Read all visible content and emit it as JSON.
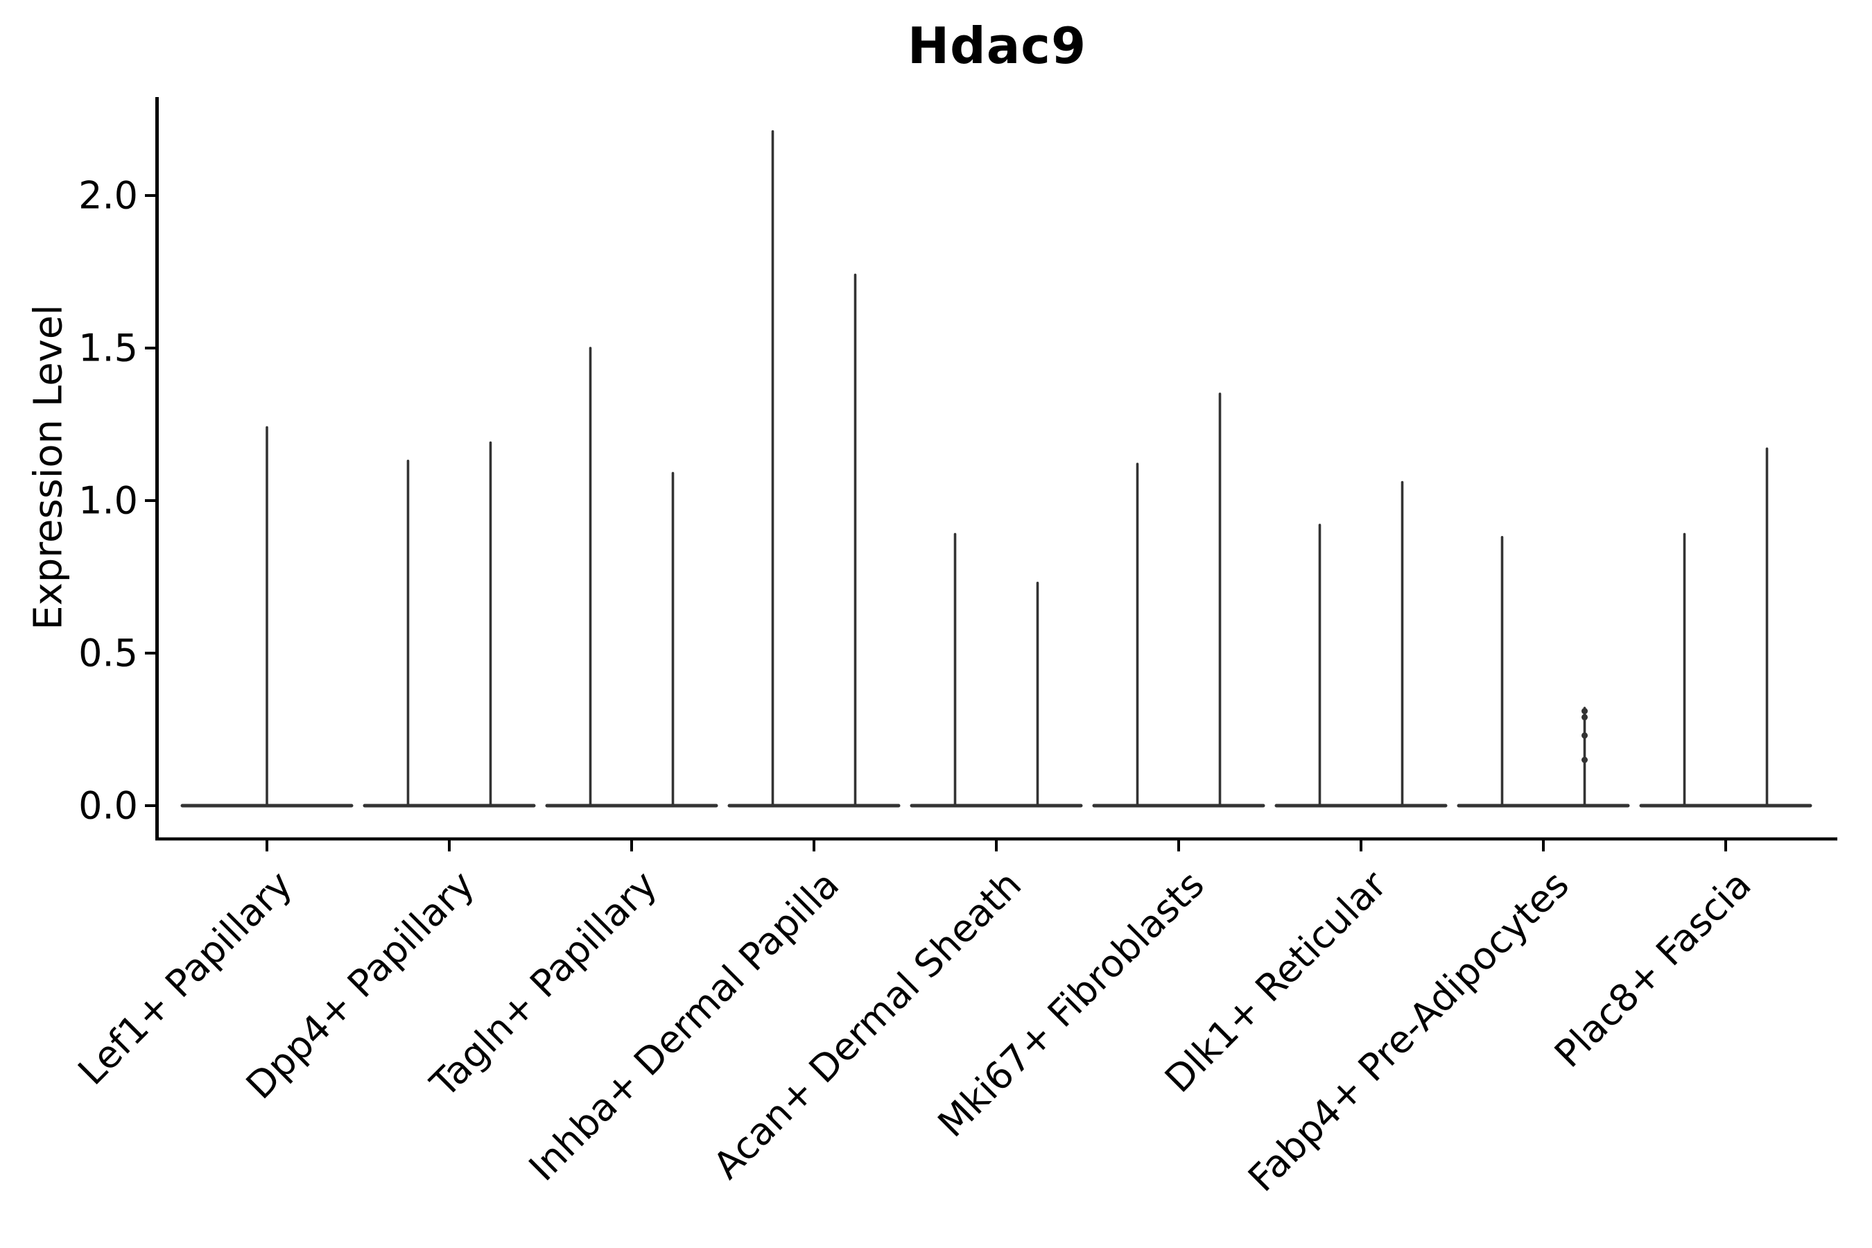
{
  "figure": {
    "background": "#ffffff",
    "violin_line_color": "#333333",
    "axis_color": "#000000"
  },
  "chart_data": {
    "type": "violin",
    "title": "Hdac9",
    "xlabel": "",
    "ylabel": "Expression Level",
    "ylim": [
      -0.11,
      2.32
    ],
    "yticks": [
      0.0,
      0.5,
      1.0,
      1.5,
      2.0
    ],
    "ytick_labels": [
      "0.0",
      "0.5",
      "1.0",
      "1.5",
      "2.0"
    ],
    "grid": false,
    "legend": "none",
    "categories": [
      "Lef1+ Papillary",
      "Dpp4+ Papillary",
      "Tagln+ Papillary",
      "Inhba+ Dermal Papilla",
      "Acan+ Dermal Sheath",
      "Mki67+ Fibroblasts",
      "Dlk1+ Reticular",
      "Fabp4+ Pre-Adipocytes",
      "Plac8+ Fascia"
    ],
    "baseline_value": 0.0,
    "violins": [
      {
        "category": "Lef1+ Papillary",
        "spikes": [
          {
            "max": 1.24
          }
        ]
      },
      {
        "category": "Dpp4+ Papillary",
        "spikes": [
          {
            "max": 1.13
          },
          {
            "max": 1.19
          }
        ]
      },
      {
        "category": "Tagln+ Papillary",
        "spikes": [
          {
            "max": 1.5
          },
          {
            "max": 1.09
          }
        ]
      },
      {
        "category": "Inhba+ Dermal Papilla",
        "spikes": [
          {
            "max": 2.21
          },
          {
            "max": 1.74
          }
        ]
      },
      {
        "category": "Acan+ Dermal Sheath",
        "spikes": [
          {
            "max": 0.89
          },
          {
            "max": 0.73
          }
        ]
      },
      {
        "category": "Mki67+ Fibroblasts",
        "spikes": [
          {
            "max": 1.12
          },
          {
            "max": 1.35
          }
        ]
      },
      {
        "category": "Dlk1+ Reticular",
        "spikes": [
          {
            "max": 0.92
          },
          {
            "max": 1.06
          }
        ]
      },
      {
        "category": "Fabp4+ Pre-Adipocytes",
        "spikes": [
          {
            "max": 0.88
          },
          {
            "max": 0.32,
            "points": [
              0.31,
              0.29,
              0.23,
              0.15
            ]
          }
        ]
      },
      {
        "category": "Plac8+ Fascia",
        "spikes": [
          {
            "max": 0.89
          },
          {
            "max": 1.17
          }
        ]
      }
    ],
    "notes": "Violin plot; expression mass concentrated at 0 gives flat baselines at y=0 with narrow vertical spikes reaching each violin's maximum expression value."
  }
}
